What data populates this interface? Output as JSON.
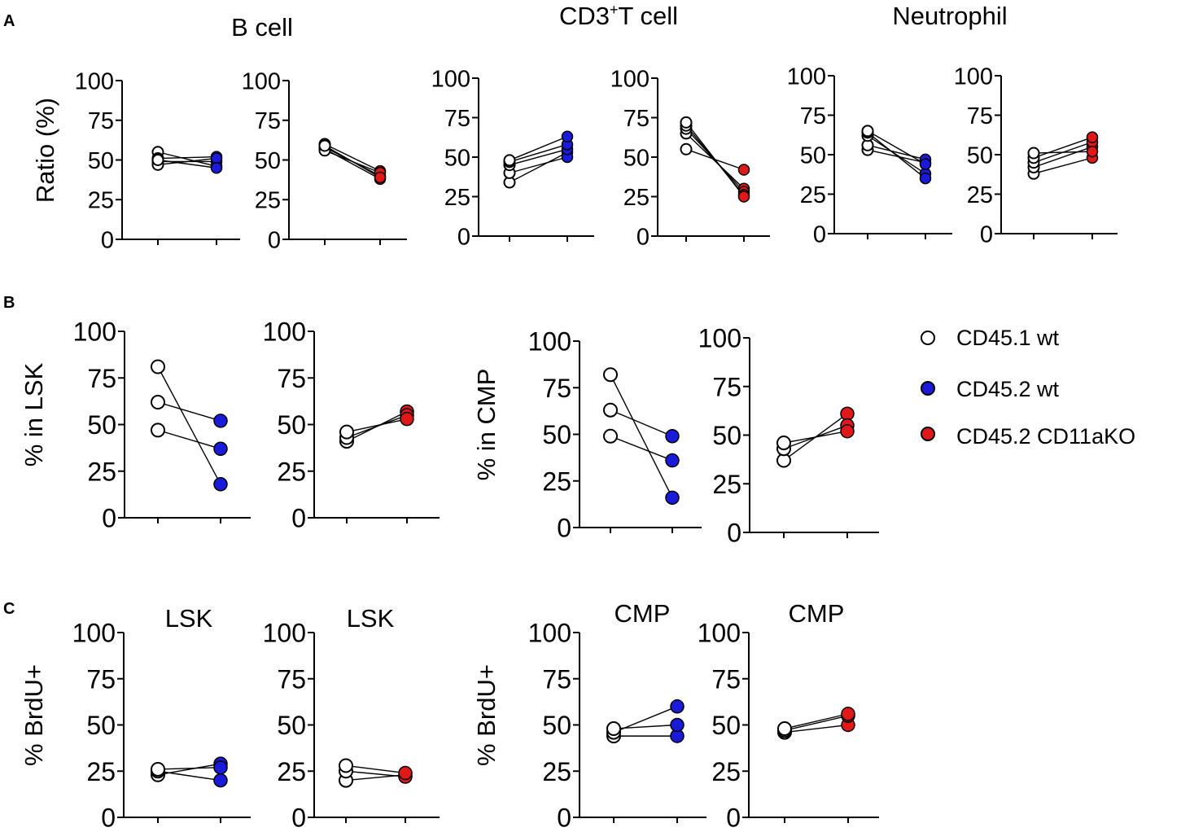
{
  "figure": {
    "panel_labels": [
      "A",
      "B",
      "C"
    ],
    "headers": {
      "b_cell": "B cell",
      "t_cell_main": "CD3",
      "t_cell_sup": "+",
      "t_cell_rest": "T cell",
      "neutrophil": "Neutrophil"
    },
    "legend": [
      {
        "label": "CD45.1 wt",
        "fill": "#ffffff"
      },
      {
        "label": "CD45.2 wt",
        "fill": "#1a1adb"
      },
      {
        "label": "CD45.2 CD11aKO",
        "fill": "#e01818"
      }
    ],
    "colors": {
      "blue": "#1a1adb",
      "red": "#e01818",
      "open": "#ffffff",
      "stroke": "#000000"
    }
  },
  "chart_data": [
    {
      "id": "A1",
      "type": "scatter",
      "title": "",
      "ylabel": "Ratio (%)",
      "ylim": [
        0,
        100
      ],
      "yticks": [
        0,
        25,
        50,
        75,
        100
      ],
      "right_color": "blue",
      "pairs": [
        [
          55,
          46
        ],
        [
          51,
          52
        ],
        [
          49,
          49
        ],
        [
          47,
          51
        ],
        [
          50,
          45
        ]
      ]
    },
    {
      "id": "A2",
      "type": "scatter",
      "title": "",
      "ylabel": "",
      "ylim": [
        0,
        100
      ],
      "yticks": [
        0,
        25,
        50,
        75,
        100
      ],
      "right_color": "red",
      "pairs": [
        [
          60,
          43
        ],
        [
          58,
          40
        ],
        [
          57,
          38
        ],
        [
          56,
          42
        ],
        [
          59,
          39
        ]
      ]
    },
    {
      "id": "A3",
      "type": "scatter",
      "title": "",
      "ylabel": "",
      "ylim": [
        0,
        100
      ],
      "yticks": [
        0,
        25,
        50,
        75,
        100
      ],
      "right_color": "blue",
      "pairs": [
        [
          34,
          53
        ],
        [
          40,
          50
        ],
        [
          45,
          55
        ],
        [
          47,
          58
        ],
        [
          48,
          63
        ]
      ]
    },
    {
      "id": "A4",
      "type": "scatter",
      "title": "",
      "ylabel": "",
      "ylim": [
        0,
        100
      ],
      "yticks": [
        0,
        25,
        50,
        75,
        100
      ],
      "right_color": "red",
      "pairs": [
        [
          55,
          42
        ],
        [
          65,
          30
        ],
        [
          68,
          28
        ],
        [
          70,
          26
        ],
        [
          72,
          25
        ]
      ]
    },
    {
      "id": "A5",
      "type": "scatter",
      "title": "",
      "ylabel": "",
      "ylim": [
        0,
        100
      ],
      "yticks": [
        0,
        25,
        50,
        75,
        100
      ],
      "right_color": "blue",
      "pairs": [
        [
          53,
          45
        ],
        [
          56,
          47
        ],
        [
          62,
          38
        ],
        [
          64,
          35
        ],
        [
          65,
          44
        ]
      ]
    },
    {
      "id": "A6",
      "type": "scatter",
      "title": "",
      "ylabel": "",
      "ylim": [
        0,
        100
      ],
      "yticks": [
        0,
        25,
        50,
        75,
        100
      ],
      "right_color": "red",
      "pairs": [
        [
          38,
          48
        ],
        [
          42,
          55
        ],
        [
          45,
          58
        ],
        [
          48,
          61
        ],
        [
          51,
          52
        ]
      ]
    },
    {
      "id": "B1",
      "type": "scatter",
      "title": "",
      "ylabel": "% in LSK",
      "ylim": [
        0,
        100
      ],
      "yticks": [
        0,
        25,
        50,
        75,
        100
      ],
      "right_color": "blue",
      "pairs": [
        [
          81,
          18
        ],
        [
          62,
          52
        ],
        [
          47,
          37
        ]
      ]
    },
    {
      "id": "B2",
      "type": "scatter",
      "title": "",
      "ylabel": "",
      "ylim": [
        0,
        100
      ],
      "yticks": [
        0,
        25,
        50,
        75,
        100
      ],
      "right_color": "red",
      "pairs": [
        [
          41,
          57
        ],
        [
          43,
          55
        ],
        [
          46,
          53
        ]
      ]
    },
    {
      "id": "B3",
      "type": "scatter",
      "title": "",
      "ylabel": "% in CMP",
      "ylim": [
        0,
        100
      ],
      "yticks": [
        0,
        25,
        50,
        75,
        100
      ],
      "right_color": "blue",
      "pairs": [
        [
          82,
          16
        ],
        [
          63,
          49
        ],
        [
          49,
          36
        ]
      ]
    },
    {
      "id": "B4",
      "type": "scatter",
      "title": "",
      "ylabel": "",
      "ylim": [
        0,
        100
      ],
      "yticks": [
        0,
        25,
        50,
        75,
        100
      ],
      "right_color": "red",
      "pairs": [
        [
          37,
          61
        ],
        [
          43,
          55
        ],
        [
          46,
          52
        ]
      ]
    },
    {
      "id": "C1",
      "type": "scatter",
      "title": "LSK",
      "ylabel": "% BrdU+",
      "ylim": [
        0,
        100
      ],
      "yticks": [
        0,
        25,
        50,
        75,
        100
      ],
      "right_color": "blue",
      "pairs": [
        [
          23,
          29
        ],
        [
          25,
          20
        ],
        [
          26,
          27
        ]
      ]
    },
    {
      "id": "C2",
      "type": "scatter",
      "title": "LSK",
      "ylabel": "",
      "ylim": [
        0,
        100
      ],
      "yticks": [
        0,
        25,
        50,
        75,
        100
      ],
      "right_color": "red",
      "pairs": [
        [
          20,
          23
        ],
        [
          25,
          22
        ],
        [
          28,
          24
        ]
      ]
    },
    {
      "id": "C3",
      "type": "scatter",
      "title": "CMP",
      "ylabel": "% BrdU+",
      "ylim": [
        0,
        100
      ],
      "yticks": [
        0,
        25,
        50,
        75,
        100
      ],
      "right_color": "blue",
      "pairs": [
        [
          44,
          44
        ],
        [
          46,
          60
        ],
        [
          48,
          50
        ]
      ]
    },
    {
      "id": "C4",
      "type": "scatter",
      "title": "CMP",
      "ylabel": "",
      "ylim": [
        0,
        100
      ],
      "yticks": [
        0,
        25,
        50,
        75,
        100
      ],
      "right_color": "red",
      "pairs": [
        [
          46,
          50
        ],
        [
          47,
          55
        ],
        [
          48,
          56
        ]
      ]
    }
  ]
}
